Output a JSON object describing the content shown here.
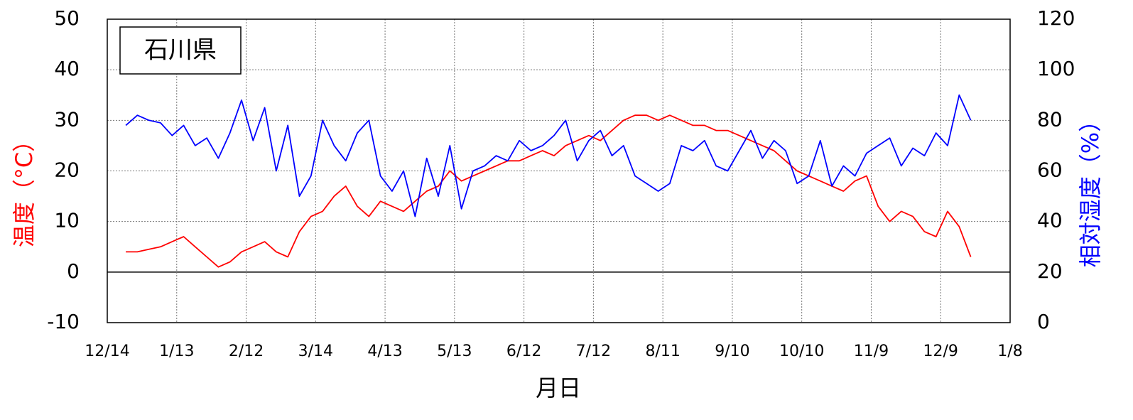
{
  "chart_data": {
    "type": "line",
    "title": "石川県",
    "xlabel": "月日",
    "ylabel": "温度（°C）",
    "y2label": "相対湿度（%）",
    "xlim": [
      0,
      390
    ],
    "xticks": [
      {
        "value": 0,
        "label": "12/14"
      },
      {
        "value": 30,
        "label": "1/13"
      },
      {
        "value": 60,
        "label": "2/12"
      },
      {
        "value": 90,
        "label": "3/14"
      },
      {
        "value": 120,
        "label": "4/13"
      },
      {
        "value": 150,
        "label": "5/13"
      },
      {
        "value": 180,
        "label": "6/12"
      },
      {
        "value": 210,
        "label": "7/12"
      },
      {
        "value": 240,
        "label": "8/11"
      },
      {
        "value": 270,
        "label": "9/10"
      },
      {
        "value": 300,
        "label": "10/10"
      },
      {
        "value": 330,
        "label": "11/9"
      },
      {
        "value": 360,
        "label": "12/9"
      },
      {
        "value": 390,
        "label": "1/8"
      }
    ],
    "ylim": [
      -10,
      50
    ],
    "yticks": [
      -10,
      0,
      10,
      20,
      30,
      40,
      50
    ],
    "y2lim": [
      0,
      120
    ],
    "y2ticks": [
      0,
      20,
      40,
      60,
      80,
      100,
      120
    ],
    "grid": true,
    "ylabel_color": "#ff0000",
    "y2label_color": "#0000ff",
    "x": [
      8,
      13,
      18,
      23,
      28,
      33,
      38,
      43,
      48,
      53,
      58,
      63,
      68,
      73,
      78,
      83,
      88,
      93,
      98,
      103,
      108,
      113,
      118,
      123,
      128,
      133,
      138,
      143,
      148,
      153,
      158,
      163,
      168,
      173,
      178,
      183,
      188,
      193,
      198,
      203,
      208,
      213,
      218,
      223,
      228,
      233,
      238,
      243,
      248,
      253,
      258,
      263,
      268,
      273,
      278,
      283,
      288,
      293,
      298,
      303,
      308,
      313,
      318,
      323,
      328,
      333,
      338,
      343,
      348,
      353,
      358,
      363,
      368,
      373
    ],
    "series": [
      {
        "name": "温度",
        "color": "#ff0000",
        "axis": "y",
        "values": [
          4,
          4,
          4.5,
          5,
          6,
          7,
          5,
          3,
          1,
          2,
          4,
          5,
          6,
          4,
          3,
          8,
          11,
          12,
          15,
          17,
          13,
          11,
          14,
          13,
          12,
          14,
          16,
          17,
          20,
          18,
          19,
          20,
          21,
          22,
          22,
          23,
          24,
          23,
          25,
          26,
          27,
          26,
          28,
          30,
          31,
          31,
          30,
          31,
          30,
          29,
          29,
          28,
          28,
          27,
          26,
          25,
          24,
          22,
          20,
          19,
          18,
          17,
          16,
          18,
          19,
          13,
          10,
          12,
          11,
          8,
          7,
          12,
          9,
          3
        ]
      },
      {
        "name": "相対湿度",
        "color": "#0000ff",
        "axis": "y2",
        "values": [
          78,
          82,
          80,
          79,
          74,
          78,
          70,
          73,
          65,
          75,
          88,
          72,
          85,
          60,
          78,
          50,
          58,
          80,
          70,
          64,
          75,
          80,
          58,
          52,
          60,
          42,
          65,
          50,
          70,
          45,
          60,
          62,
          66,
          64,
          72,
          68,
          70,
          74,
          80,
          64,
          72,
          76,
          66,
          70,
          58,
          55,
          52,
          55,
          70,
          68,
          72,
          62,
          60,
          68,
          76,
          65,
          72,
          68,
          55,
          58,
          72,
          54,
          62,
          58,
          67,
          70,
          73,
          62,
          69,
          66,
          75,
          70,
          90,
          80
        ]
      }
    ]
  }
}
